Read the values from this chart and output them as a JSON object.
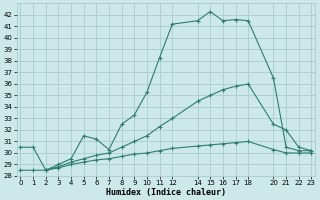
{
  "title": "",
  "xlabel": "Humidex (Indice chaleur)",
  "bg_color": "#cce8e8",
  "grid_color": "#aacccc",
  "line_color": "#2e7d6e",
  "x_ticks": [
    0,
    1,
    2,
    3,
    4,
    5,
    6,
    7,
    8,
    9,
    10,
    11,
    12,
    14,
    15,
    16,
    17,
    18,
    20,
    21,
    22,
    23
  ],
  "xlim": [
    -0.3,
    23.3
  ],
  "ylim": [
    28,
    43
  ],
  "y_ticks": [
    28,
    29,
    30,
    31,
    32,
    33,
    34,
    35,
    36,
    37,
    38,
    39,
    40,
    41,
    42
  ],
  "curve1_x": [
    0,
    1,
    2,
    3,
    4,
    5,
    6,
    7,
    8,
    9,
    10,
    11,
    12,
    14,
    15,
    16,
    17,
    18,
    20,
    21,
    22,
    23
  ],
  "curve1_y": [
    30.5,
    30.5,
    28.5,
    29.0,
    29.5,
    31.5,
    31.2,
    30.3,
    32.5,
    33.3,
    35.3,
    38.3,
    41.2,
    41.5,
    42.3,
    41.5,
    41.6,
    41.5,
    36.5,
    30.5,
    30.2,
    30.2
  ],
  "curve2_x": [
    2,
    3,
    4,
    5,
    6,
    7,
    8,
    9,
    10,
    11,
    12,
    14,
    15,
    16,
    17,
    18,
    20,
    21,
    22,
    23
  ],
  "curve2_y": [
    28.5,
    28.8,
    29.2,
    29.5,
    29.8,
    30.0,
    30.5,
    31.0,
    31.5,
    32.3,
    33.0,
    34.5,
    35.0,
    35.5,
    35.8,
    36.0,
    32.5,
    32.0,
    30.5,
    30.2
  ],
  "curve3_x": [
    0,
    1,
    2,
    3,
    4,
    5,
    6,
    7,
    8,
    9,
    10,
    11,
    12,
    14,
    15,
    16,
    17,
    18,
    20,
    21,
    22,
    23
  ],
  "curve3_y": [
    28.5,
    28.5,
    28.5,
    28.7,
    29.0,
    29.2,
    29.4,
    29.5,
    29.7,
    29.9,
    30.0,
    30.2,
    30.4,
    30.6,
    30.7,
    30.8,
    30.9,
    31.0,
    30.3,
    30.0,
    30.0,
    30.0
  ]
}
